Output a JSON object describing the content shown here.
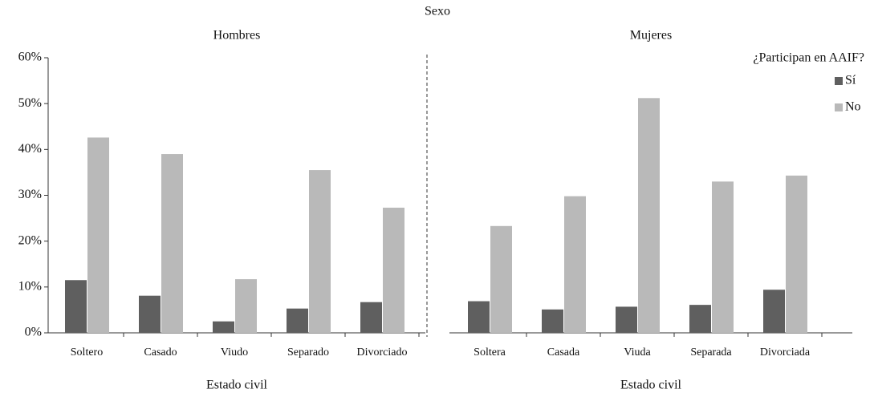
{
  "chart_data": {
    "type": "bar",
    "title": "Sexo",
    "legend_title": "¿Participan en AAIF?",
    "legend": "top-right",
    "series": [
      {
        "name": "Sí",
        "color": "#5f5f5f"
      },
      {
        "name": "No",
        "color": "#b9b9b9"
      }
    ],
    "ylim": [
      0,
      60
    ],
    "yticks": [
      {
        "value": 0,
        "label": "0%"
      },
      {
        "value": 10,
        "label": "10%"
      },
      {
        "value": 20,
        "label": "20%"
      },
      {
        "value": 30,
        "label": "30%"
      },
      {
        "value": 40,
        "label": "40%"
      },
      {
        "value": 50,
        "label": "50%"
      },
      {
        "value": 60,
        "label": "60%"
      }
    ],
    "panels": [
      {
        "title": "Hombres",
        "xlabel": "Estado civil",
        "categories": [
          "Soltero",
          "Casado",
          "Viudo",
          "Separado",
          "Divorciado"
        ],
        "series": [
          {
            "values": [
              11.5,
              8.1,
              2.5,
              5.3,
              6.7
            ]
          },
          {
            "values": [
              42.6,
              39.0,
              11.7,
              35.5,
              27.3
            ]
          }
        ]
      },
      {
        "title": "Mujeres",
        "xlabel": "Estado civil",
        "categories": [
          "Soltera",
          "Casada",
          "Viuda",
          "Separada",
          "Divorciada"
        ],
        "series": [
          {
            "values": [
              6.9,
              5.1,
              5.7,
              6.1,
              9.4
            ]
          },
          {
            "values": [
              23.3,
              29.8,
              51.2,
              33.0,
              34.3
            ]
          }
        ]
      }
    ]
  }
}
